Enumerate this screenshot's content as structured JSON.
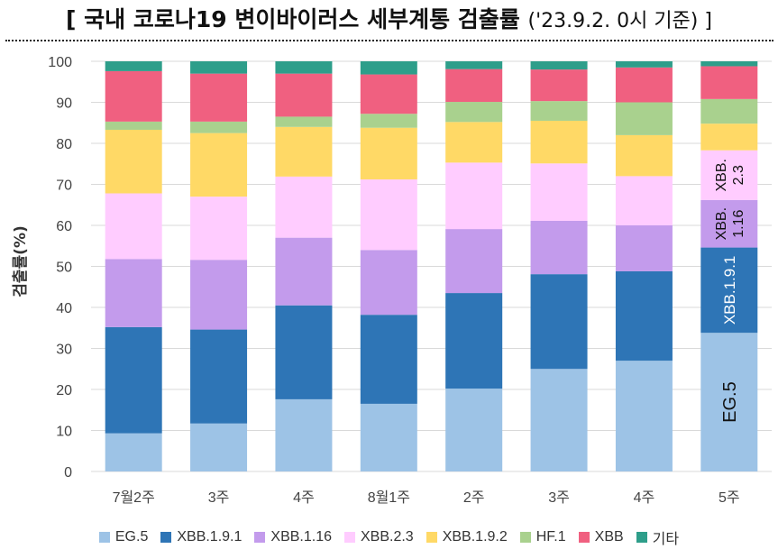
{
  "chart_data": {
    "type": "bar",
    "stacked": true,
    "title": "[ 국내 코로나19 변이바이러스 세부계통 검출률",
    "title_note": "('23.9.2. 0시 기준) ]",
    "xlabel": "",
    "ylabel": "검출률(%)",
    "ylim": [
      0,
      100
    ],
    "yticks": [
      0,
      10,
      20,
      30,
      40,
      50,
      60,
      70,
      80,
      90,
      100
    ],
    "grid": true,
    "legend_position": "bottom",
    "categories": [
      "7월2주",
      "3주",
      "4주",
      "8월1주",
      "2주",
      "3주",
      "4주",
      "5주"
    ],
    "series": [
      {
        "name": "EG.5",
        "color": "#9dc3e6",
        "values": [
          9.3,
          11.7,
          17.6,
          16.5,
          20.2,
          25.0,
          27.0,
          33.8
        ]
      },
      {
        "name": "XBB.1.9.1",
        "color": "#2e75b6",
        "values": [
          25.9,
          22.9,
          22.9,
          21.7,
          23.3,
          23.1,
          21.8,
          20.8
        ]
      },
      {
        "name": "XBB.1.16",
        "color": "#c39bec",
        "values": [
          16.6,
          17.0,
          16.5,
          15.8,
          15.6,
          13.0,
          11.2,
          11.6
        ]
      },
      {
        "name": "XBB.2.3",
        "color": "#ffccff",
        "values": [
          16.0,
          15.4,
          14.9,
          17.2,
          16.2,
          14.0,
          12.0,
          12.1
        ]
      },
      {
        "name": "XBB.1.9.2",
        "color": "#ffd966",
        "values": [
          15.5,
          15.5,
          12.1,
          12.6,
          9.9,
          10.4,
          10.0,
          6.5
        ]
      },
      {
        "name": "HF.1",
        "color": "#a9d18e",
        "values": [
          2.0,
          2.8,
          2.5,
          3.4,
          4.9,
          4.8,
          8.0,
          6.0
        ]
      },
      {
        "name": "XBB",
        "color": "#f06080",
        "values": [
          12.3,
          11.7,
          10.5,
          9.6,
          8.0,
          7.7,
          8.5,
          8.0
        ]
      },
      {
        "name": "기타",
        "color": "#2e9e8a",
        "values": [
          2.4,
          3.0,
          3.0,
          3.2,
          1.9,
          2.0,
          1.5,
          1.2
        ]
      }
    ],
    "annotations": [
      {
        "series": "EG.5",
        "category": "5주",
        "text": "EG.5"
      },
      {
        "series": "XBB.1.9.1",
        "category": "5주",
        "text": "XBB.1.9.1"
      },
      {
        "series": "XBB.1.16",
        "category": "5주",
        "text": "XBB. 1.16"
      },
      {
        "series": "XBB.2.3",
        "category": "5주",
        "text": "XBB. 2.3"
      }
    ]
  }
}
